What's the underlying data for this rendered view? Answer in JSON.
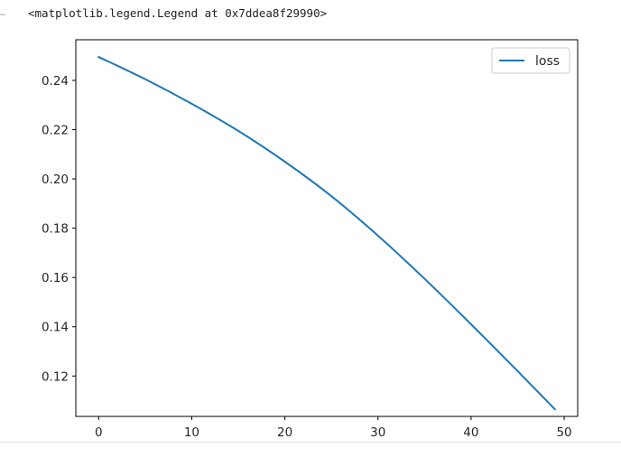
{
  "cell": {
    "prompt": "…",
    "output_text": "<matplotlib.legend.Legend at 0x7ddea8f29990>"
  },
  "chart_data": {
    "type": "line",
    "title": "",
    "xlabel": "",
    "ylabel": "",
    "xlim": [
      -2.45,
      51.45
    ],
    "ylim": [
      0.1036,
      0.2565
    ],
    "xticks": [
      0,
      10,
      20,
      30,
      40,
      50
    ],
    "yticks": [
      0.12,
      0.14,
      0.16,
      0.18,
      0.2,
      0.22,
      0.24
    ],
    "ytick_labels": [
      "0.12",
      "0.14",
      "0.16",
      "0.18",
      "0.20",
      "0.22",
      "0.24"
    ],
    "xtick_labels": [
      "0",
      "10",
      "20",
      "30",
      "40",
      "50"
    ],
    "grid": false,
    "legend": "upper-right",
    "series": [
      {
        "name": "loss",
        "color": "#1f77b4",
        "x": [
          0,
          5,
          10,
          15,
          20,
          25,
          30,
          35,
          40,
          45,
          49
        ],
        "y": [
          0.2495,
          0.2405,
          0.2305,
          0.2195,
          0.207,
          0.193,
          0.177,
          0.1595,
          0.141,
          0.122,
          0.1065
        ]
      }
    ]
  }
}
